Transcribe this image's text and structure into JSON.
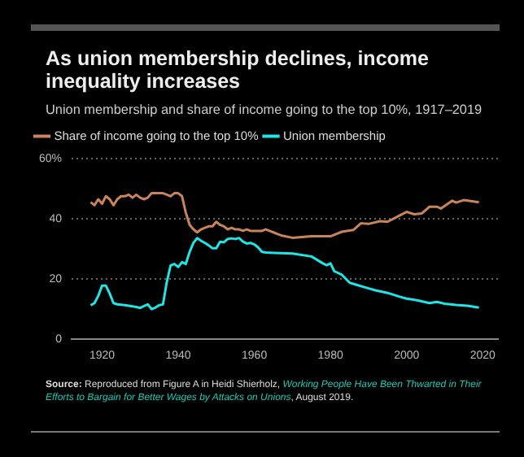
{
  "chart_data": {
    "type": "line",
    "title": "As union membership declines, income inequality increases",
    "subtitle": "Union membership and share of income going to the top 10%, 1917–2019",
    "annotations": [
      "Source:",
      "Reproduced from Figure A in Heidi Shierholz,",
      "Working People Have Been Thwarted in Their Efforts to Bargain for Better Wages by Attacks on Unions",
      ", August 2019."
    ],
    "xlim": [
      1912,
      2024
    ],
    "xticks": [
      1920,
      1940,
      1960,
      1980,
      2000,
      2020
    ],
    "ylim": [
      0,
      60
    ],
    "yticks": [
      0,
      20,
      40,
      {
        "value": 60,
        "label": "60%"
      }
    ],
    "grid": "y",
    "legend": "top left",
    "marker": "none",
    "line_style": "solid",
    "series": [
      {
        "name": "Share of income going to the top 10%",
        "color": "#c8845a",
        "x": [
          1917,
          1918,
          1919,
          1920,
          1921,
          1922,
          1923,
          1924,
          1925,
          1926,
          1927,
          1928,
          1929,
          1930,
          1931,
          1932,
          1933,
          1934,
          1935,
          1936,
          1937,
          1938,
          1939,
          1940,
          1941,
          1942,
          1943,
          1944,
          1945,
          1946,
          1947,
          1948,
          1949,
          1950,
          1951,
          1952,
          1953,
          1954,
          1955,
          1956,
          1957,
          1958,
          1959,
          1960,
          1961,
          1962,
          1963,
          1964,
          1965,
          1966,
          1967,
          1970,
          1975,
          1980,
          1983,
          1986,
          1988,
          1990,
          1993,
          1995,
          1998,
          2000,
          2002,
          2004,
          2006,
          2008,
          2009,
          2012,
          2013,
          2015,
          2019
        ],
        "values": [
          45.5,
          44.5,
          46.5,
          45,
          47.5,
          46.5,
          44.5,
          46.5,
          47.5,
          47.5,
          48,
          47,
          48,
          47,
          46.5,
          47,
          48.5,
          48.5,
          48.5,
          48.5,
          48,
          47.5,
          48.5,
          48.5,
          47.5,
          42,
          38,
          36.5,
          35.5,
          36.5,
          37,
          37.5,
          37.5,
          39,
          38,
          37.5,
          36.5,
          37,
          36.5,
          36.5,
          36,
          36.5,
          36,
          36,
          36,
          36,
          36.5,
          36,
          35.5,
          35,
          34.5,
          33.7,
          34.2,
          34.2,
          35.7,
          36.3,
          38.5,
          38.3,
          39.2,
          39,
          41,
          42.3,
          41.5,
          41.8,
          44,
          44,
          43.4,
          46,
          45.4,
          46.2,
          45.5
        ]
      },
      {
        "name": "Union membership",
        "color": "#1ee6e6",
        "x": [
          1917,
          1918,
          1919,
          1920,
          1921,
          1922,
          1923,
          1924,
          1926,
          1929,
          1930,
          1932,
          1933,
          1934,
          1935,
          1936,
          1937,
          1938,
          1939,
          1940,
          1941,
          1942,
          1943,
          1944,
          1945,
          1946,
          1947,
          1948,
          1949,
          1950,
          1951,
          1952,
          1953,
          1954,
          1955,
          1956,
          1957,
          1958,
          1959,
          1960,
          1961,
          1962,
          1963,
          1965,
          1970,
          1975,
          1978,
          1979,
          1980,
          1981,
          1983,
          1985,
          1987,
          1990,
          1992,
          1995,
          1998,
          2000,
          2003,
          2006,
          2008,
          2010,
          2013,
          2016,
          2019
        ],
        "values": [
          11.3,
          12,
          14.4,
          17.8,
          17.8,
          15.2,
          12,
          11.6,
          11.3,
          10.7,
          10.4,
          11.6,
          10,
          10.5,
          11.3,
          11.6,
          19,
          24.5,
          25,
          24,
          25.6,
          25,
          29,
          32,
          33.6,
          32.7,
          32,
          31.2,
          30.2,
          30.2,
          32.4,
          32.2,
          33.3,
          33.5,
          33.3,
          33.6,
          32.4,
          31.8,
          32,
          31.5,
          30.5,
          29,
          28.8,
          28.7,
          28.5,
          27.5,
          25.2,
          24.6,
          25.2,
          22.6,
          21.4,
          18.8,
          18,
          16.9,
          16.2,
          15.4,
          14.2,
          13.5,
          12.9,
          12,
          12.4,
          11.8,
          11.4,
          11.1,
          10.5
        ]
      }
    ]
  }
}
